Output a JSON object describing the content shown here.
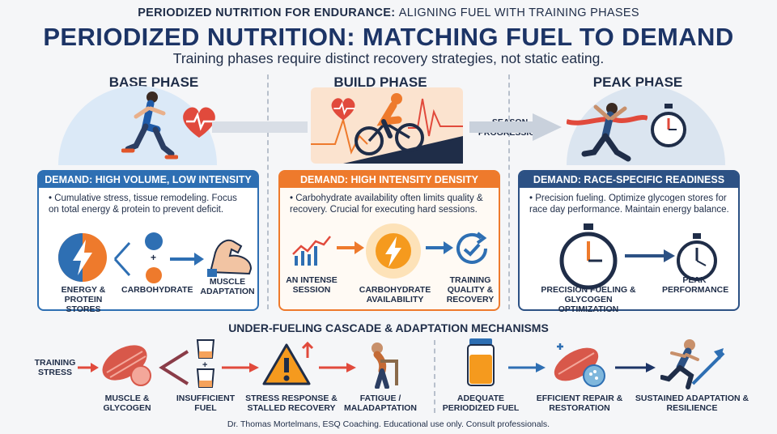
{
  "header": {
    "supertitle_bold": "PERIODIZED NUTRITION FOR ENDURANCE:",
    "supertitle_light": "ALIGNING FUEL WITH TRAINING PHASES",
    "title": "PERIODIZED NUTRITION: MATCHING FUEL TO DEMAND",
    "subtitle": "Training phases require distinct recovery strategies, not static eating."
  },
  "progression": {
    "label_line1": "SEASON",
    "label_line2": "PROGRESSION"
  },
  "phases": [
    {
      "title": "BASE PHASE",
      "demand": "DEMAND: HIGH VOLUME, LOW INTENSITY",
      "description": "• Cumulative stress, tissue remodeling. Focus on total energy & protein to prevent deficit.",
      "labels": [
        "ENERGY & PROTEIN STORES",
        "CARBOHYDRATE",
        "MUSCLE ADAPTATION"
      ],
      "accent": "#2e6fb3",
      "icons": [
        "runner-icon",
        "heart-rate-icon",
        "energy-bolt-icon",
        "plus-icon",
        "muscle-arm-icon"
      ]
    },
    {
      "title": "BUILD PHASE",
      "demand": "DEMAND: HIGH INTENSITY DENSITY",
      "description": "• Carbohydrate availability often limits quality & recovery. Crucial for executing hard sessions.",
      "labels": [
        "AN INTENSE SESSION",
        "CARBOHYDRATE AVAILABILITY",
        "TRAINING QUALITY & RECOVERY"
      ],
      "accent": "#ee7a2c",
      "icons": [
        "cyclist-icon",
        "heart-rate-icon",
        "line-chart-icon",
        "sun-bolt-icon",
        "refresh-check-icon"
      ]
    },
    {
      "title": "PEAK PHASE",
      "demand": "DEMAND: RACE-SPECIFIC READINESS",
      "description": "• Precision fueling. Optimize glycogen stores for race day performance. Maintain energy balance.",
      "labels": [
        "PRECISION FUELING & GLYCOGEN OPTIMIZATION",
        "PEAK PERFORMANCE"
      ],
      "accent": "#2c5184",
      "icons": [
        "finish-line-runner-icon",
        "stopwatch-icon",
        "large-stopwatch-icon",
        "small-stopwatch-icon"
      ]
    }
  ],
  "cascade": {
    "title": "UNDER-FUELING CASCADE & ADAPTATION MECHANISMS",
    "steps": [
      "TRAINING STRESS",
      "MUSCLE & GLYCOGEN",
      "INSUFFICIENT FUEL",
      "STRESS RESPONSE & STALLED RECOVERY",
      "FATIGUE / MALADAPTATION",
      "ADEQUATE PERIODIZED FUEL",
      "EFFICIENT REPAIR & RESTORATION",
      "SUSTAINED ADAPTATION & RESILIENCE"
    ],
    "icons": [
      "muscle-fiber-icon",
      "cup-icon",
      "warning-icon",
      "fatigued-person-icon",
      "fuel-jar-icon",
      "repair-muscle-icon",
      "sprinter-icon"
    ]
  },
  "footer": "Dr. Thomas Mortelmans, ESQ Coaching. Educational use only. Consult professionals."
}
